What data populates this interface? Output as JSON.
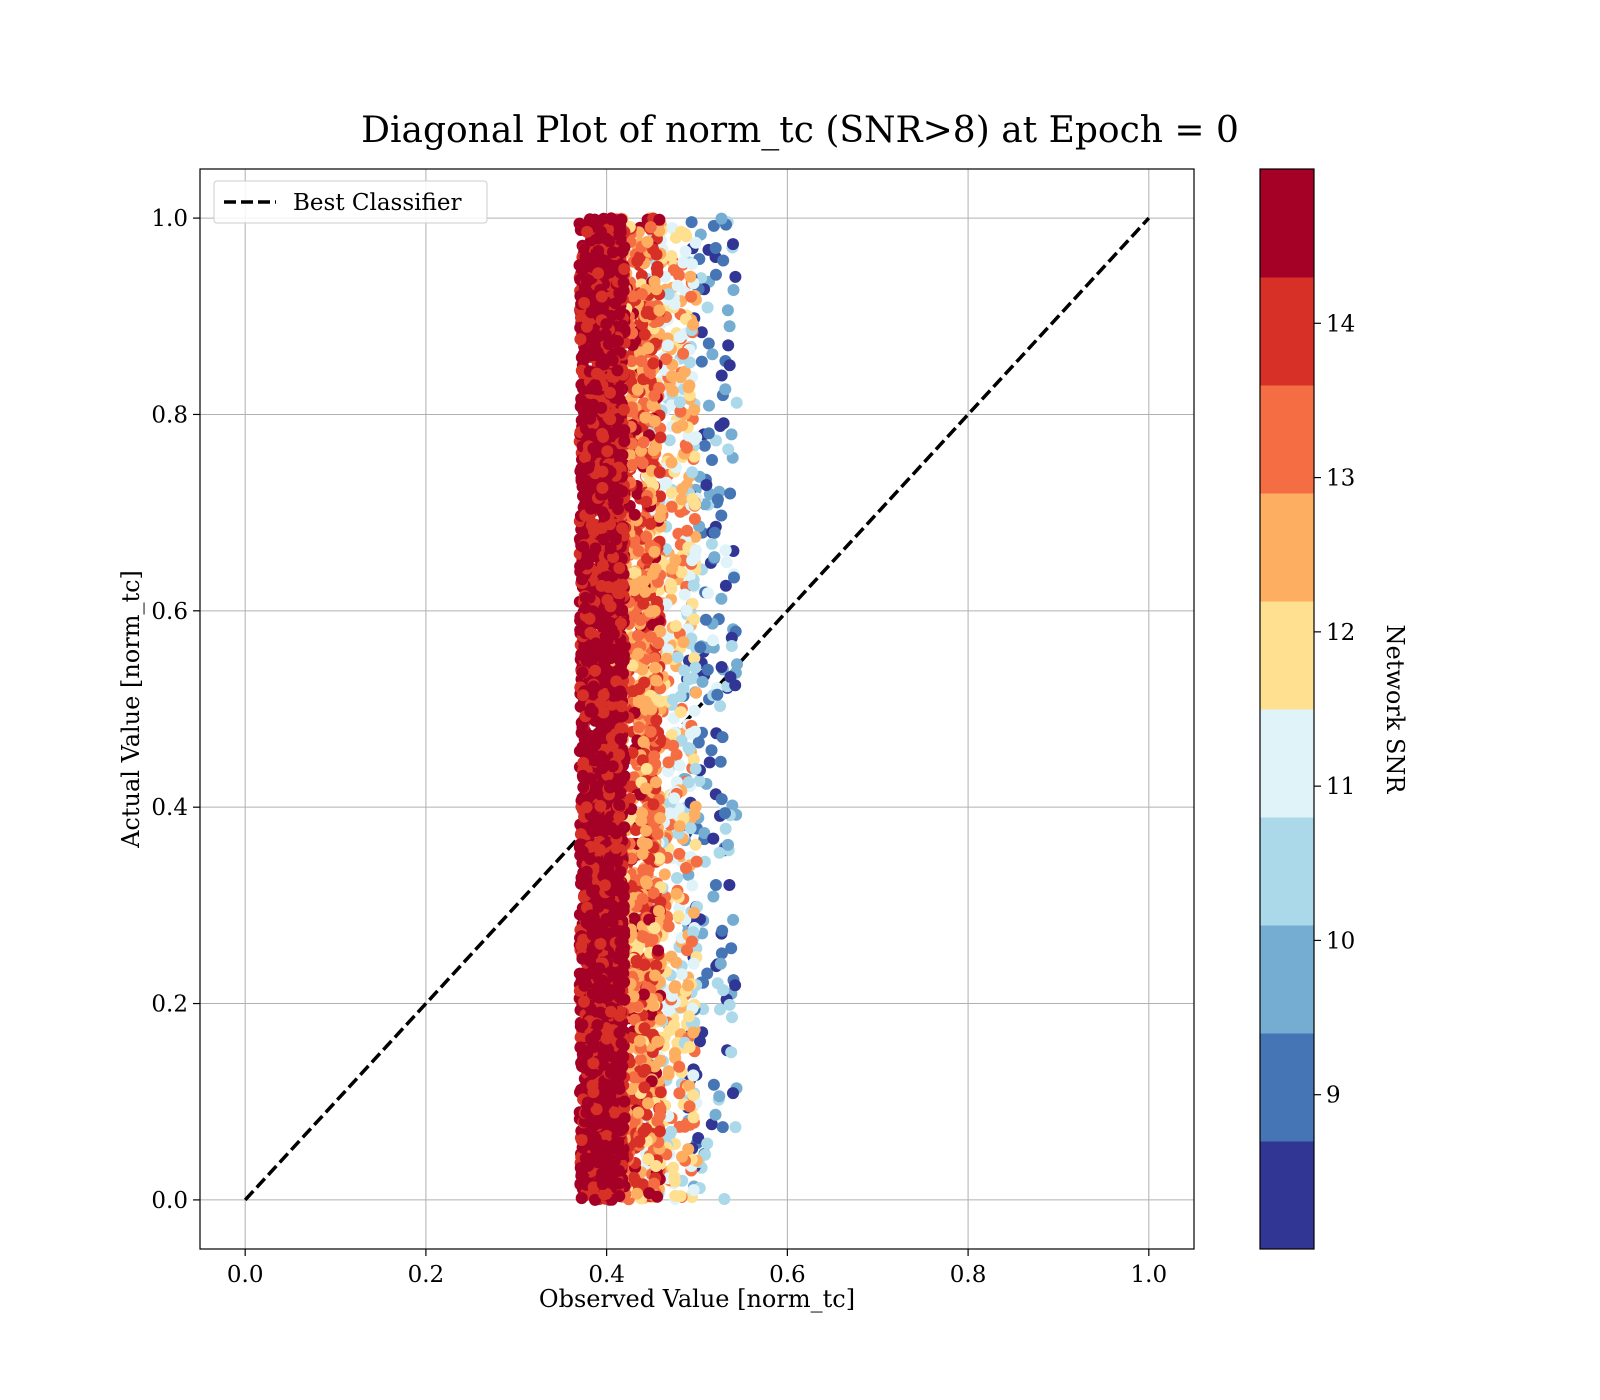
{
  "chart_data": {
    "type": "scatter",
    "title": "Diagonal Plot of norm_tc (SNR>8) at Epoch = 0",
    "xlabel": "Observed Value [norm_tc]",
    "ylabel": "Actual Value [norm_tc]",
    "xlim": [
      -0.05,
      1.05
    ],
    "ylim": [
      -0.05,
      1.05
    ],
    "xticks": [
      "0.0",
      "0.2",
      "0.4",
      "0.6",
      "0.8",
      "1.0"
    ],
    "yticks": [
      "0.0",
      "0.2",
      "0.4",
      "0.6",
      "0.8",
      "1.0"
    ],
    "grid": true,
    "legend": {
      "position": "upper-left",
      "entries": [
        {
          "label": "Best Classifier",
          "style": "dashed",
          "color": "#000000"
        }
      ]
    },
    "reference_line": {
      "label": "Best Classifier",
      "x": [
        0.0,
        1.0
      ],
      "y": [
        0.0,
        1.0
      ],
      "style": "dashed",
      "color": "#000000"
    },
    "scatter": {
      "x_range": [
        0.37,
        0.55
      ],
      "y_range": [
        0.0,
        1.0
      ],
      "color_by": "Network SNR",
      "density_note": "dense band near x=0.37-0.42 (SNR>14), sparser blue points near x=0.50-0.55 (low SNR)",
      "bands": [
        {
          "x_center": 0.395,
          "x_spread": 0.025,
          "snr_min": 14.0,
          "snr_max": 15.0
        },
        {
          "x_center": 0.43,
          "x_spread": 0.03,
          "snr_min": 12.0,
          "snr_max": 14.5
        },
        {
          "x_center": 0.47,
          "x_spread": 0.03,
          "snr_min": 10.5,
          "snr_max": 13.5
        },
        {
          "x_center": 0.515,
          "x_spread": 0.03,
          "snr_min": 8.0,
          "snr_max": 11.0
        }
      ]
    },
    "colorbar": {
      "label": "Network SNR",
      "range": [
        8.0,
        15.0
      ],
      "tick_values": [
        9,
        10,
        11,
        12,
        13,
        14
      ],
      "tick_labels": [
        "9",
        "10",
        "11",
        "12",
        "13",
        "14"
      ],
      "bins": [
        {
          "min": 8.0,
          "max": 8.7,
          "color": "#313695"
        },
        {
          "min": 8.7,
          "max": 9.4,
          "color": "#4575b4"
        },
        {
          "min": 9.4,
          "max": 10.1,
          "color": "#74add1"
        },
        {
          "min": 10.1,
          "max": 10.8,
          "color": "#abd9e9"
        },
        {
          "min": 10.8,
          "max": 11.5,
          "color": "#e0f3f8"
        },
        {
          "min": 11.5,
          "max": 12.2,
          "color": "#fee090"
        },
        {
          "min": 12.2,
          "max": 12.9,
          "color": "#fdae61"
        },
        {
          "min": 12.9,
          "max": 13.6,
          "color": "#f46d43"
        },
        {
          "min": 13.6,
          "max": 14.3,
          "color": "#d73027"
        },
        {
          "min": 14.3,
          "max": 15.0,
          "color": "#a50026"
        }
      ]
    }
  }
}
